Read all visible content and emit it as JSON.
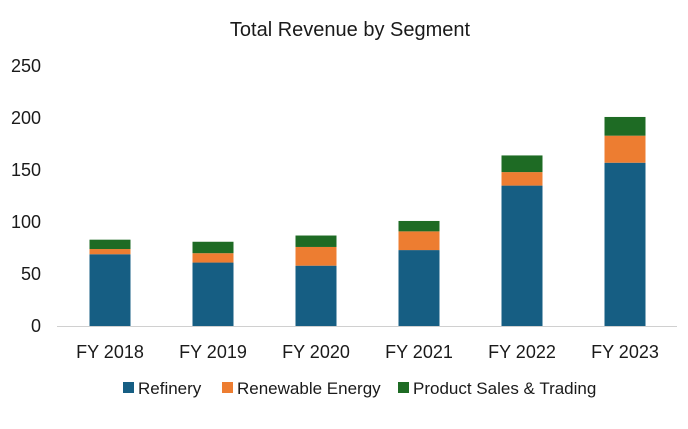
{
  "chart_data": {
    "type": "bar",
    "stacked": true,
    "title": "Total Revenue by Segment",
    "xlabel": "",
    "ylabel": "",
    "categories": [
      "FY 2018",
      "FY 2019",
      "FY 2020",
      "FY 2021",
      "FY 2022",
      "FY 2023"
    ],
    "series": [
      {
        "name": "Refinery",
        "color": "#165e83",
        "values": [
          69,
          61,
          58,
          73,
          135,
          157
        ]
      },
      {
        "name": "Renewable Energy",
        "color": "#ed7d31",
        "values": [
          5,
          9,
          18,
          18,
          13,
          26
        ]
      },
      {
        "name": "Product Sales & Trading",
        "color": "#1e6b24",
        "values": [
          9,
          11,
          11,
          10,
          16,
          18
        ]
      }
    ],
    "ylim": [
      0,
      250
    ],
    "yticks": [
      0,
      50,
      100,
      150,
      200,
      250
    ],
    "grid": false,
    "legend": "bottom"
  }
}
